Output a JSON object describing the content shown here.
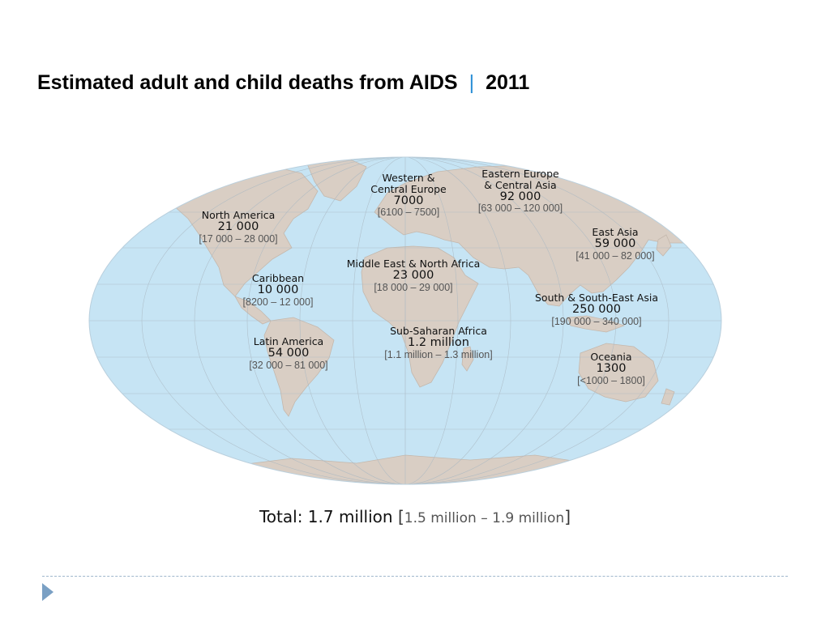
{
  "title": {
    "main": "Estimated adult and child deaths from AIDS",
    "separator": "|",
    "year": "2011"
  },
  "colors": {
    "ocean": "#c6e4f4",
    "land": "#d9cec4",
    "graticule": "#aab8c2",
    "title_separator": "#2b8fd6",
    "range_text": "#555555"
  },
  "regions": [
    {
      "key": "north_america",
      "name": "North America",
      "value": "21 000",
      "range": "[17 000 – 28 000]"
    },
    {
      "key": "western_central_europe",
      "name_line1": "Western &",
      "name_line2": "Central Europe",
      "value": "7000",
      "range": "[6100 – 7500]"
    },
    {
      "key": "eastern_europe_central_asia",
      "name_line1": "Eastern Europe",
      "name_line2": "& Central Asia",
      "value": "92 000",
      "range": "[63 000 – 120 000]"
    },
    {
      "key": "east_asia",
      "name": "East Asia",
      "value": "59 000",
      "range": "[41 000 – 82 000]"
    },
    {
      "key": "caribbean",
      "name": "Caribbean",
      "value": "10 000",
      "range": "[8200 – 12 000]"
    },
    {
      "key": "middle_east_north_africa",
      "name": "Middle East & North Africa",
      "value": "23 000",
      "range": "[18 000 – 29 000]"
    },
    {
      "key": "south_southeast_asia",
      "name": "South & South-East Asia",
      "value": "250 000",
      "range": "[190 000 – 340 000]"
    },
    {
      "key": "latin_america",
      "name": "Latin America",
      "value": "54 000",
      "range": "[32 000 – 81 000]"
    },
    {
      "key": "sub_saharan_africa",
      "name": "Sub-Saharan Africa",
      "value": "1.2 million",
      "range": "[1.1 million – 1.3 million]"
    },
    {
      "key": "oceania",
      "name": "Oceania",
      "value": "1300",
      "range": "[<1000 – 1800]"
    }
  ],
  "total": {
    "label": "Total: 1.7 million",
    "bracket_open": "[",
    "range": "1.5 million – 1.9 million",
    "bracket_close": "]"
  }
}
